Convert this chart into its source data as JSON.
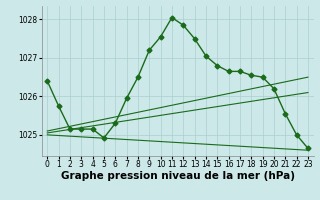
{
  "series_main": {
    "x": [
      0,
      1,
      2,
      3,
      4,
      5,
      6,
      7,
      8,
      9,
      10,
      11,
      12,
      13,
      14,
      15,
      16,
      17,
      18,
      19,
      20,
      21,
      22,
      23
    ],
    "y": [
      1026.4,
      1025.75,
      1025.15,
      1025.15,
      1025.15,
      1024.92,
      1025.3,
      1025.95,
      1026.5,
      1027.2,
      1027.55,
      1028.05,
      1027.85,
      1027.5,
      1027.05,
      1026.8,
      1026.65,
      1026.65,
      1026.55,
      1026.5,
      1026.2,
      1025.55,
      1025.0,
      1024.65
    ]
  },
  "series_upper": {
    "x": [
      0,
      23
    ],
    "y": [
      1025.1,
      1026.5
    ]
  },
  "series_mid": {
    "x": [
      0,
      23
    ],
    "y": [
      1025.05,
      1026.1
    ]
  },
  "series_lower": {
    "x": [
      0,
      23
    ],
    "y": [
      1025.0,
      1024.6
    ]
  },
  "xlim": [
    -0.5,
    23.5
  ],
  "ylim": [
    1024.45,
    1028.35
  ],
  "yticks": [
    1025,
    1026,
    1027,
    1028
  ],
  "xtick_labels": [
    "0",
    "1",
    "2",
    "3",
    "4",
    "5",
    "6",
    "7",
    "8",
    "9",
    "10",
    "11",
    "12",
    "13",
    "14",
    "15",
    "16",
    "17",
    "18",
    "19",
    "20",
    "21",
    "22",
    "23"
  ],
  "xlabel": "Graphe pression niveau de la mer (hPa)",
  "bg_color": "#cce8e8",
  "grid_color": "#aacfcf",
  "line_color": "#1a6b1a",
  "tick_fontsize": 5.5,
  "label_fontsize": 7.5,
  "marker_size": 2.5,
  "line_width": 1.0
}
